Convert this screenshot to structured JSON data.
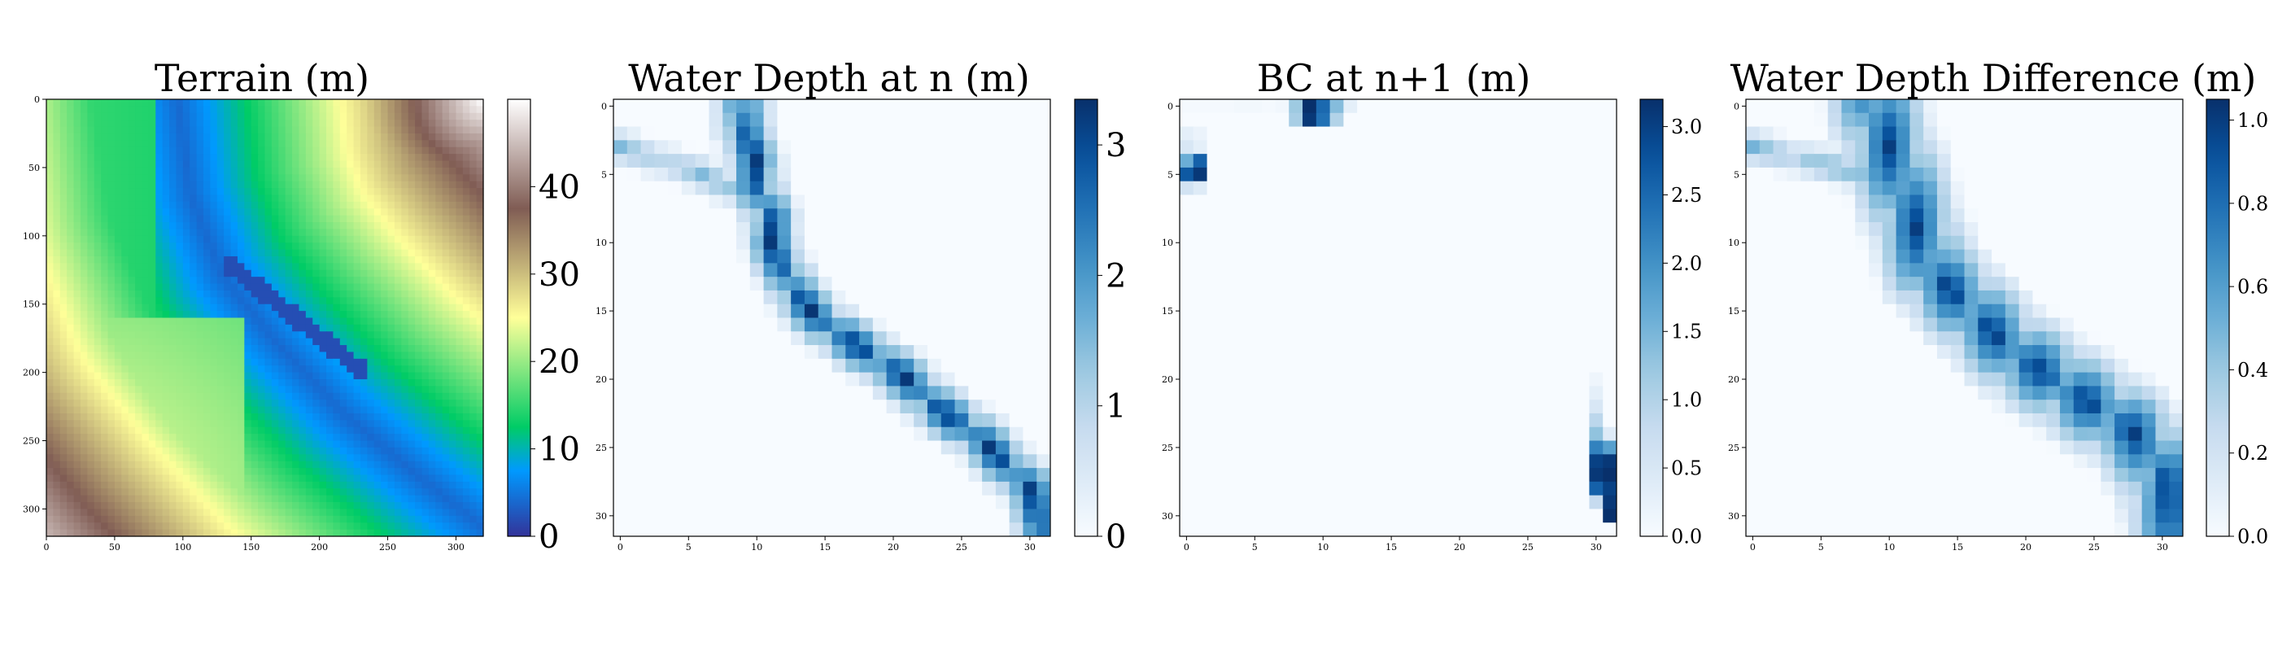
{
  "figure": {
    "panels": [
      {
        "title": "Terrain (m)"
      },
      {
        "title": "Water Depth at n (m)"
      },
      {
        "title": "BC at n+1 (m)"
      },
      {
        "title": "Water Depth Difference (m)"
      }
    ]
  },
  "chart_data": [
    {
      "type": "heatmap",
      "title": "Terrain (m)",
      "grid_size": 320,
      "colormap": "terrain",
      "x_ticks": [
        0,
        50,
        100,
        150,
        200,
        250,
        300
      ],
      "y_ticks": [
        0,
        50,
        100,
        150,
        200,
        250,
        300
      ],
      "colorbar": {
        "min": 0,
        "max": 50,
        "ticks": [
          0,
          10,
          20,
          30,
          40
        ]
      },
      "description_values": {
        "channel_min_m": 2,
        "northeast_peak_m": 50,
        "southwest_plateau_m": 26
      }
    },
    {
      "type": "heatmap",
      "title": "Water Depth at n (m)",
      "grid_size": 32,
      "colormap": "Blues",
      "x_ticks": [
        0,
        5,
        10,
        15,
        20,
        25,
        30
      ],
      "y_ticks": [
        0,
        5,
        10,
        15,
        20,
        25,
        30
      ],
      "colorbar": {
        "min": 0,
        "max": 3.35,
        "ticks": [
          0,
          1,
          2,
          3
        ]
      },
      "river_path": [
        [
          9,
          0
        ],
        [
          9,
          2
        ],
        [
          10,
          4
        ],
        [
          10,
          6
        ],
        [
          11,
          8
        ],
        [
          11,
          10
        ],
        [
          12,
          12
        ],
        [
          13,
          14
        ],
        [
          15,
          16
        ],
        [
          18,
          18
        ],
        [
          21,
          20
        ],
        [
          23,
          22
        ],
        [
          26,
          24
        ],
        [
          28,
          26
        ],
        [
          30,
          28
        ],
        [
          31,
          31
        ]
      ],
      "tributary_path": [
        [
          0,
          3
        ],
        [
          3,
          4
        ],
        [
          6,
          5
        ],
        [
          8,
          6
        ],
        [
          10,
          6
        ]
      ],
      "peak_depth": 3.3
    },
    {
      "type": "heatmap",
      "title": "BC at n+1 (m)",
      "grid_size": 32,
      "colormap": "Blues",
      "x_ticks": [
        0,
        5,
        10,
        15,
        20,
        25,
        30
      ],
      "y_ticks": [
        0,
        5,
        10,
        15,
        20,
        25,
        30
      ],
      "colorbar": {
        "min": 0,
        "max": 3.2,
        "ticks": [
          0.0,
          0.5,
          1.0,
          1.5,
          2.0,
          2.5,
          3.0
        ]
      },
      "cells": [
        [
          0,
          0,
          0.05
        ],
        [
          1,
          0,
          0.05
        ],
        [
          2,
          0,
          0.05
        ],
        [
          3,
          0,
          0.05
        ],
        [
          4,
          0,
          0.08
        ],
        [
          5,
          0,
          0.08
        ],
        [
          6,
          0,
          0.05
        ],
        [
          7,
          0,
          0.1
        ],
        [
          8,
          0,
          1.2
        ],
        [
          9,
          0,
          3.2
        ],
        [
          10,
          0,
          2.5
        ],
        [
          11,
          0,
          1.4
        ],
        [
          12,
          0,
          0.3
        ],
        [
          8,
          1,
          1.1
        ],
        [
          9,
          1,
          3.1
        ],
        [
          10,
          1,
          2.4
        ],
        [
          11,
          1,
          1.0
        ],
        [
          0,
          2,
          0.3
        ],
        [
          1,
          2,
          0.2
        ],
        [
          0,
          3,
          0.5
        ],
        [
          1,
          3,
          0.3
        ],
        [
          0,
          4,
          1.6
        ],
        [
          1,
          4,
          2.6
        ],
        [
          0,
          5,
          2.7
        ],
        [
          1,
          5,
          3.1
        ],
        [
          0,
          6,
          0.6
        ],
        [
          1,
          6,
          0.4
        ],
        [
          30,
          20,
          0.15
        ],
        [
          30,
          21,
          0.3
        ],
        [
          30,
          22,
          0.5
        ],
        [
          30,
          23,
          0.9
        ],
        [
          30,
          24,
          1.3
        ],
        [
          31,
          24,
          0.4
        ],
        [
          30,
          25,
          2.2
        ],
        [
          31,
          25,
          1.8
        ],
        [
          30,
          26,
          3.0
        ],
        [
          31,
          26,
          3.1
        ],
        [
          30,
          27,
          3.1
        ],
        [
          31,
          27,
          3.2
        ],
        [
          30,
          28,
          2.6
        ],
        [
          31,
          28,
          3.0
        ],
        [
          30,
          29,
          0.8
        ],
        [
          31,
          29,
          3.1
        ],
        [
          31,
          30,
          3.2
        ]
      ]
    },
    {
      "type": "heatmap",
      "title": "Water Depth Difference (m)",
      "grid_size": 32,
      "colormap": "Blues",
      "x_ticks": [
        0,
        5,
        10,
        15,
        20,
        25,
        30
      ],
      "y_ticks": [
        0,
        5,
        10,
        15,
        20,
        25,
        30
      ],
      "colorbar": {
        "min": 0,
        "max": 1.05,
        "ticks": [
          0.0,
          0.2,
          0.4,
          0.6,
          0.8,
          1.0
        ]
      },
      "river_path": [
        [
          9,
          0
        ],
        [
          10,
          3
        ],
        [
          11,
          6
        ],
        [
          12,
          9
        ],
        [
          13,
          12
        ],
        [
          16,
          15
        ],
        [
          19,
          18
        ],
        [
          22,
          20
        ],
        [
          25,
          22
        ],
        [
          28,
          24
        ],
        [
          30,
          27
        ],
        [
          31,
          31
        ]
      ],
      "peak_difference": 1.0
    }
  ]
}
